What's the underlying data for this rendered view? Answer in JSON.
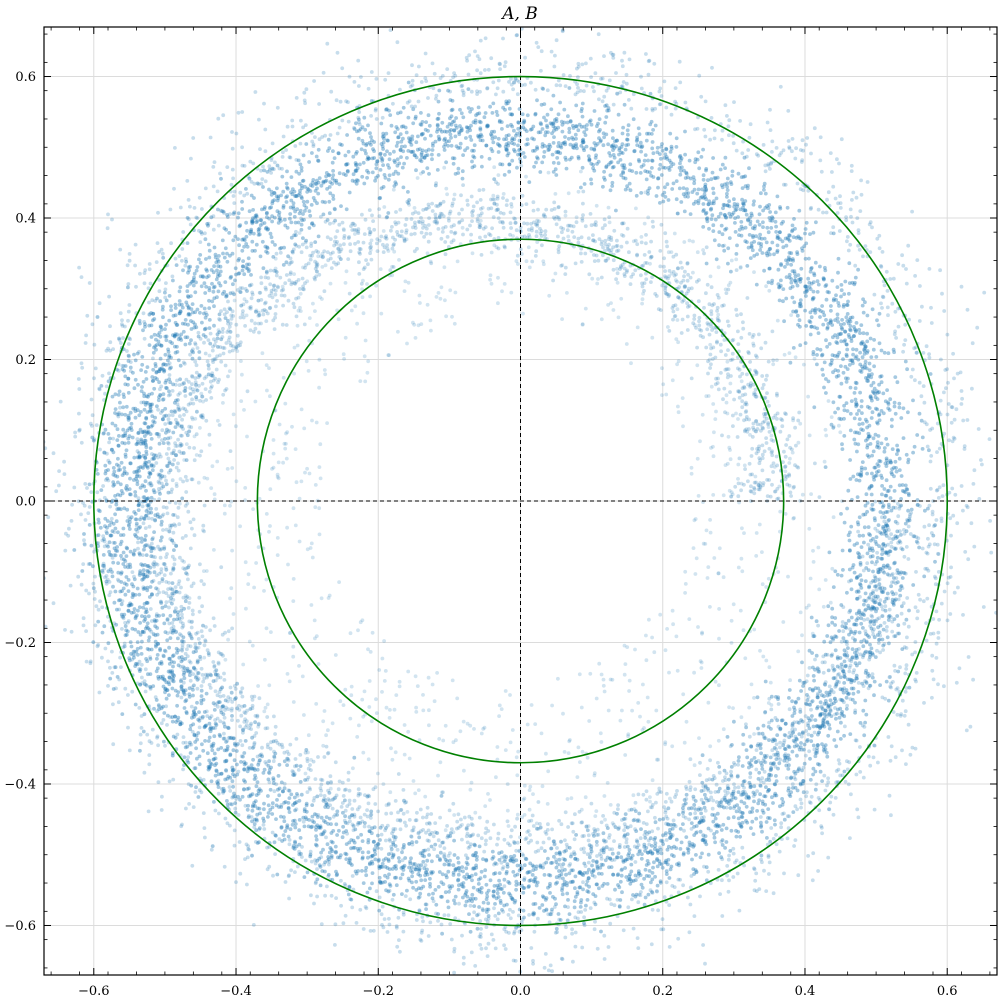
{
  "chart_data": {
    "type": "scatter",
    "title": "A, B",
    "xlabel": "",
    "ylabel": "",
    "xlim": [
      -0.67,
      0.67
    ],
    "ylim": [
      -0.67,
      0.67
    ],
    "xticks": [
      -0.6,
      -0.4,
      -0.2,
      0.0,
      0.2,
      0.4,
      0.6
    ],
    "yticks": [
      -0.6,
      -0.4,
      -0.2,
      0.0,
      0.2,
      0.4,
      0.6
    ],
    "xtick_labels": [
      "−0.6",
      "−0.4",
      "−0.2",
      "0.0",
      "0.2",
      "0.4",
      "0.6"
    ],
    "ytick_labels": [
      "−0.6",
      "−0.4",
      "−0.2",
      "0.0",
      "0.2",
      "0.4",
      "0.6"
    ],
    "grid": true,
    "legend": "none",
    "reference_lines": [
      {
        "kind": "hline",
        "y": 0.0,
        "style": "dashed",
        "color": "#000000"
      },
      {
        "kind": "vline",
        "x": 0.0,
        "style": "dashed",
        "color": "#000000"
      }
    ],
    "circles": [
      {
        "center": [
          0.0,
          0.0
        ],
        "radius": 0.6,
        "color": "#008000"
      },
      {
        "center": [
          0.0,
          0.0
        ],
        "radius": 0.37,
        "color": "#008000"
      }
    ],
    "point_color": "#1f77b4",
    "point_alpha": 0.25,
    "point_density": [
      {
        "band": "main ring",
        "r_min": 0.48,
        "r_max": 0.58,
        "center": [
          -0.02,
          -0.01
        ],
        "density": "very high"
      },
      {
        "band": "outer halo",
        "r_min": 0.58,
        "r_max": 0.67,
        "center": [
          0.0,
          0.0
        ],
        "density": "low"
      },
      {
        "band": "inner spiral",
        "r_min": 0.22,
        "r_max": 0.48,
        "center": [
          -0.02,
          0.0
        ],
        "density": "medium"
      },
      {
        "band": "empty core",
        "r_min": 0.0,
        "r_max": 0.22,
        "center": [
          0.0,
          0.0
        ],
        "density": "none"
      }
    ]
  }
}
